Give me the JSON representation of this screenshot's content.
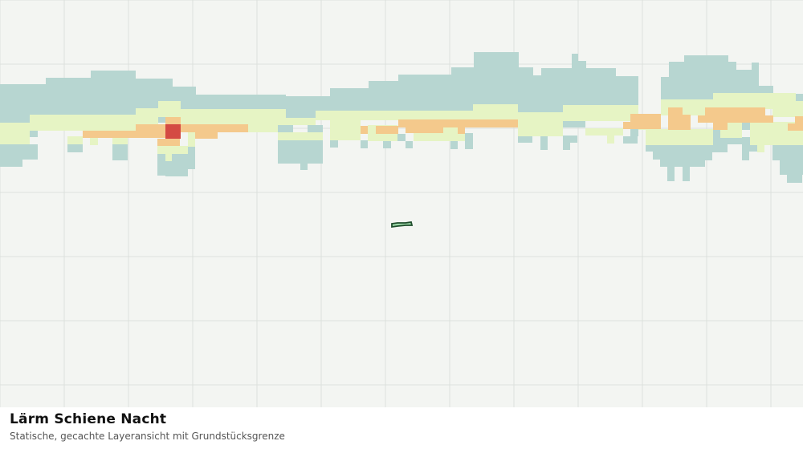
{
  "footer": {
    "title": "Lärm Schiene Nacht",
    "subtitle": "Statische, gecachte Layeransicht mit Grundstücksgrenze"
  },
  "legend_colors": {
    "map_background": "#f3f5f2",
    "grid_line": "#dde1dd",
    "noise_low": "#b7d6d1",
    "noise_medium": "#e6f4c4",
    "noise_high": "#f4c98c",
    "noise_very_high": "#d44a43",
    "parcel_fill": "#9cd9a8",
    "parcel_stroke": "#1f4d2c"
  }
}
